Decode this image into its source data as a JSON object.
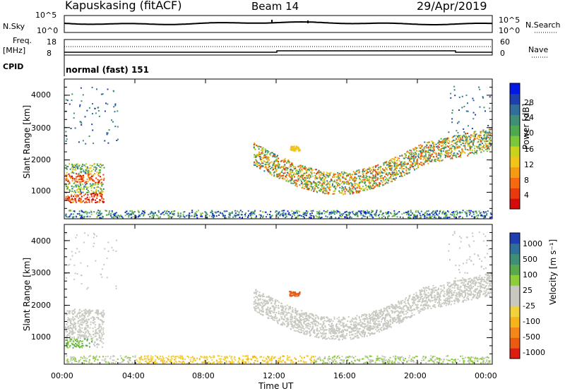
{
  "header": {
    "station": "Kapuskasing (fitACF)",
    "beam": "Beam 14",
    "date": "29/Apr/2019"
  },
  "panels": {
    "nsky_label": "N.Sky",
    "nsearch_label": "N.Search",
    "nsky_ticks": [
      "10^5",
      "10^0"
    ],
    "nsearch_ticks": [
      "10^5",
      "10^0"
    ],
    "freq_label_1": "Freq.",
    "freq_label_2": "[MHz]",
    "freq_ticks": [
      "18",
      "8"
    ],
    "nave_label": "Nave",
    "nave_ticks": [
      "60",
      "0"
    ],
    "cpid_label": "CPID",
    "cpid_text": "normal (fast) 151"
  },
  "chart_data": [
    {
      "type": "heatmap",
      "name": "power",
      "ylabel": "Slant Range [km]",
      "yticks": [
        "4000",
        "3000",
        "2000",
        "1000"
      ],
      "colorbar_label": "Power [dB]",
      "colorbar_ticks": [
        "28",
        "24",
        "20",
        "16",
        "12",
        "8",
        "4"
      ],
      "colors": [
        "#0019e6",
        "#1f3fb0",
        "#2f6f99",
        "#3e8f76",
        "#4ea850",
        "#7cc63a",
        "#c9d31e",
        "#f2c418",
        "#f59a12",
        "#f56a0e",
        "#e83a0c",
        "#d40b0b"
      ],
      "xlabel": "",
      "xticks": [
        "00:00",
        "04:00",
        "08:00",
        "12:00",
        "16:00",
        "20:00",
        "00:00"
      ]
    },
    {
      "type": "heatmap",
      "name": "velocity",
      "ylabel": "Slant Range [km]",
      "yticks": [
        "4000",
        "3000",
        "2000",
        "1000"
      ],
      "colorbar_label": "Velocity [m s⁻¹]",
      "colorbar_ticks": [
        "1000",
        "500",
        "100",
        "25",
        "-25",
        "-100",
        "-500",
        "-1000"
      ],
      "colors": [
        "#1f3fb0",
        "#2f6f99",
        "#3e8f76",
        "#5aa84e",
        "#8dcd3a",
        "#c8c8c0",
        "#c8c8c0",
        "#f2d23a",
        "#f5b41a",
        "#f5861a",
        "#ea5a12",
        "#dc1e12"
      ],
      "xlabel": "Time UT",
      "xticks": [
        "00:00",
        "04:00",
        "08:00",
        "12:00",
        "16:00",
        "20:00",
        "00:00"
      ]
    }
  ]
}
